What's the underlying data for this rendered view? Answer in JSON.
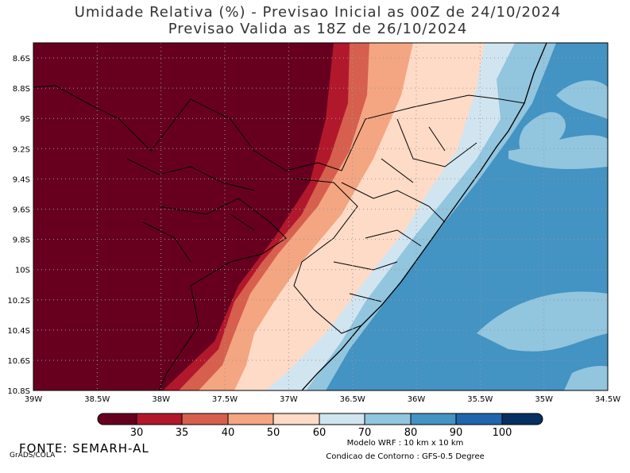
{
  "header": {
    "title_line1": "Umidade Relativa (%) - Previsao Inicial as 00Z de 24/10/2024",
    "title_line2": "Previsao Valida as 18Z de 26/10/2024"
  },
  "map": {
    "lon_labels": [
      "39W",
      "38.5W",
      "38W",
      "37.5W",
      "37W",
      "36.5W",
      "36W",
      "35.5W",
      "35W",
      "34.5W"
    ],
    "lat_labels": [
      "8.6S",
      "8.8S",
      "9S",
      "9.2S",
      "9.4S",
      "9.6S",
      "9.8S",
      "10S",
      "10.2S",
      "10.4S",
      "10.6S",
      "10.8S"
    ]
  },
  "colorbar": {
    "labels": [
      "30",
      "35",
      "40",
      "50",
      "60",
      "70",
      "80",
      "90",
      "100"
    ],
    "colors": [
      "#67001f",
      "#b2182b",
      "#d6604d",
      "#f4a582",
      "#fddbc7",
      "#d1e5f0",
      "#92c5de",
      "#4393c3",
      "#2166ac",
      "#053061"
    ]
  },
  "footer": {
    "source": "FONTE: SEMARH-AL",
    "credit": "GrADS/COLA",
    "model": "Modelo WRF : 10 km x 10 km",
    "boundary": "Condicao de Contorno : GFS-0.5 Degree"
  }
}
